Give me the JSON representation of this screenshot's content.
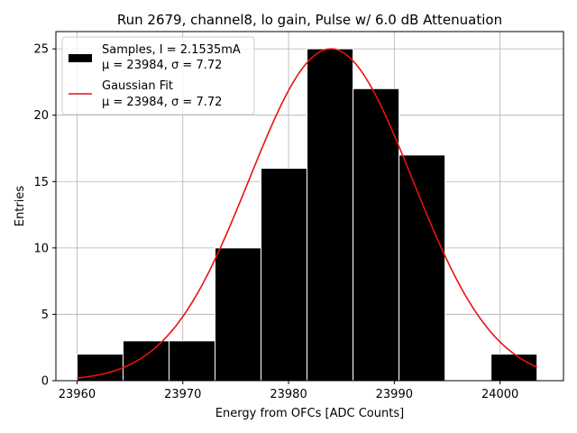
{
  "chart_data": {
    "type": "bar",
    "title": "Run 2679, channel8, lo gain, Pulse w/ 6.0 dB Attenuation",
    "xlabel": "Energy from OFCs [ADC Counts]",
    "ylabel": "Entries",
    "xlim": [
      23958,
      24006
    ],
    "ylim": [
      0,
      26.3
    ],
    "xticks": [
      23960,
      23970,
      23980,
      23990,
      24000
    ],
    "yticks": [
      0,
      5,
      10,
      15,
      20,
      25
    ],
    "grid": true,
    "bins": [
      {
        "x0": 23960.0,
        "x1": 23964.35,
        "count": 2
      },
      {
        "x0": 23964.35,
        "x1": 23968.7,
        "count": 3
      },
      {
        "x0": 23968.7,
        "x1": 23973.05,
        "count": 3
      },
      {
        "x0": 23973.05,
        "x1": 23977.4,
        "count": 10
      },
      {
        "x0": 23977.4,
        "x1": 23981.75,
        "count": 16
      },
      {
        "x0": 23981.75,
        "x1": 23986.1,
        "count": 25
      },
      {
        "x0": 23986.1,
        "x1": 23990.45,
        "count": 22
      },
      {
        "x0": 23990.45,
        "x1": 23994.8,
        "count": 17
      },
      {
        "x0": 23994.8,
        "x1": 23999.15,
        "count": 0
      },
      {
        "x0": 23999.15,
        "x1": 24003.5,
        "count": 2
      }
    ],
    "fit": {
      "type": "gaussian",
      "mu": 23984,
      "sigma": 7.72,
      "amplitude": 25,
      "x_range": [
        23960,
        24003.5
      ]
    },
    "series": [
      {
        "name": "Samples",
        "color": "#000000"
      },
      {
        "name": "Gaussian Fit",
        "color": "#e8120f"
      }
    ],
    "legend": {
      "position": "top-left",
      "entries": [
        {
          "line1": "Samples, I = 2.1535mA",
          "line2": "μ = 23984, σ = 7.72"
        },
        {
          "line1": "Gaussian Fit",
          "line2": "μ = 23984, σ = 7.72"
        }
      ]
    }
  }
}
